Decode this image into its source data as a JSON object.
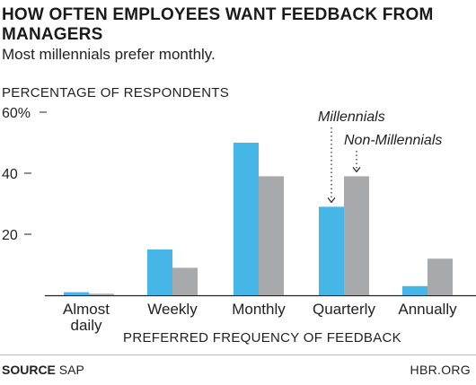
{
  "title": "HOW OFTEN EMPLOYEES WANT FEEDBACK FROM MANAGERS",
  "subtitle": "Most millennials prefer monthly.",
  "footer": {
    "source_label": "SOURCE",
    "source_value": "SAP",
    "brand": "HBR.ORG"
  },
  "colors": {
    "millennials": "#45b6e6",
    "non_millennials": "#a7a9ac",
    "axis": "#222222"
  },
  "chart_data": {
    "type": "bar",
    "title": "HOW OFTEN EMPLOYEES WANT FEEDBACK FROM MANAGERS",
    "subtitle": "Most millennials prefer monthly.",
    "xlabel": "PREFERRED FREQUENCY OF FEEDBACK",
    "ylabel": "PERCENTAGE OF RESPONDENTS",
    "ylim": [
      0,
      60
    ],
    "yticks": [
      {
        "value": 20,
        "label": "20"
      },
      {
        "value": 40,
        "label": "40"
      },
      {
        "value": 60,
        "label": "60%"
      }
    ],
    "categories": [
      [
        "Almost",
        "daily"
      ],
      [
        "Weekly"
      ],
      [
        "Monthly"
      ],
      [
        "Quarterly"
      ],
      [
        "Annually"
      ]
    ],
    "series": [
      {
        "name": "Millennials",
        "values": [
          1,
          15,
          50,
          29,
          3
        ]
      },
      {
        "name": "Non-Millennials",
        "values": [
          0.5,
          9,
          39,
          39,
          12
        ]
      }
    ],
    "annotations": [
      "Millennials",
      "Non-Millennials"
    ],
    "grid": false,
    "legend": "callouts on Quarterly bars"
  }
}
